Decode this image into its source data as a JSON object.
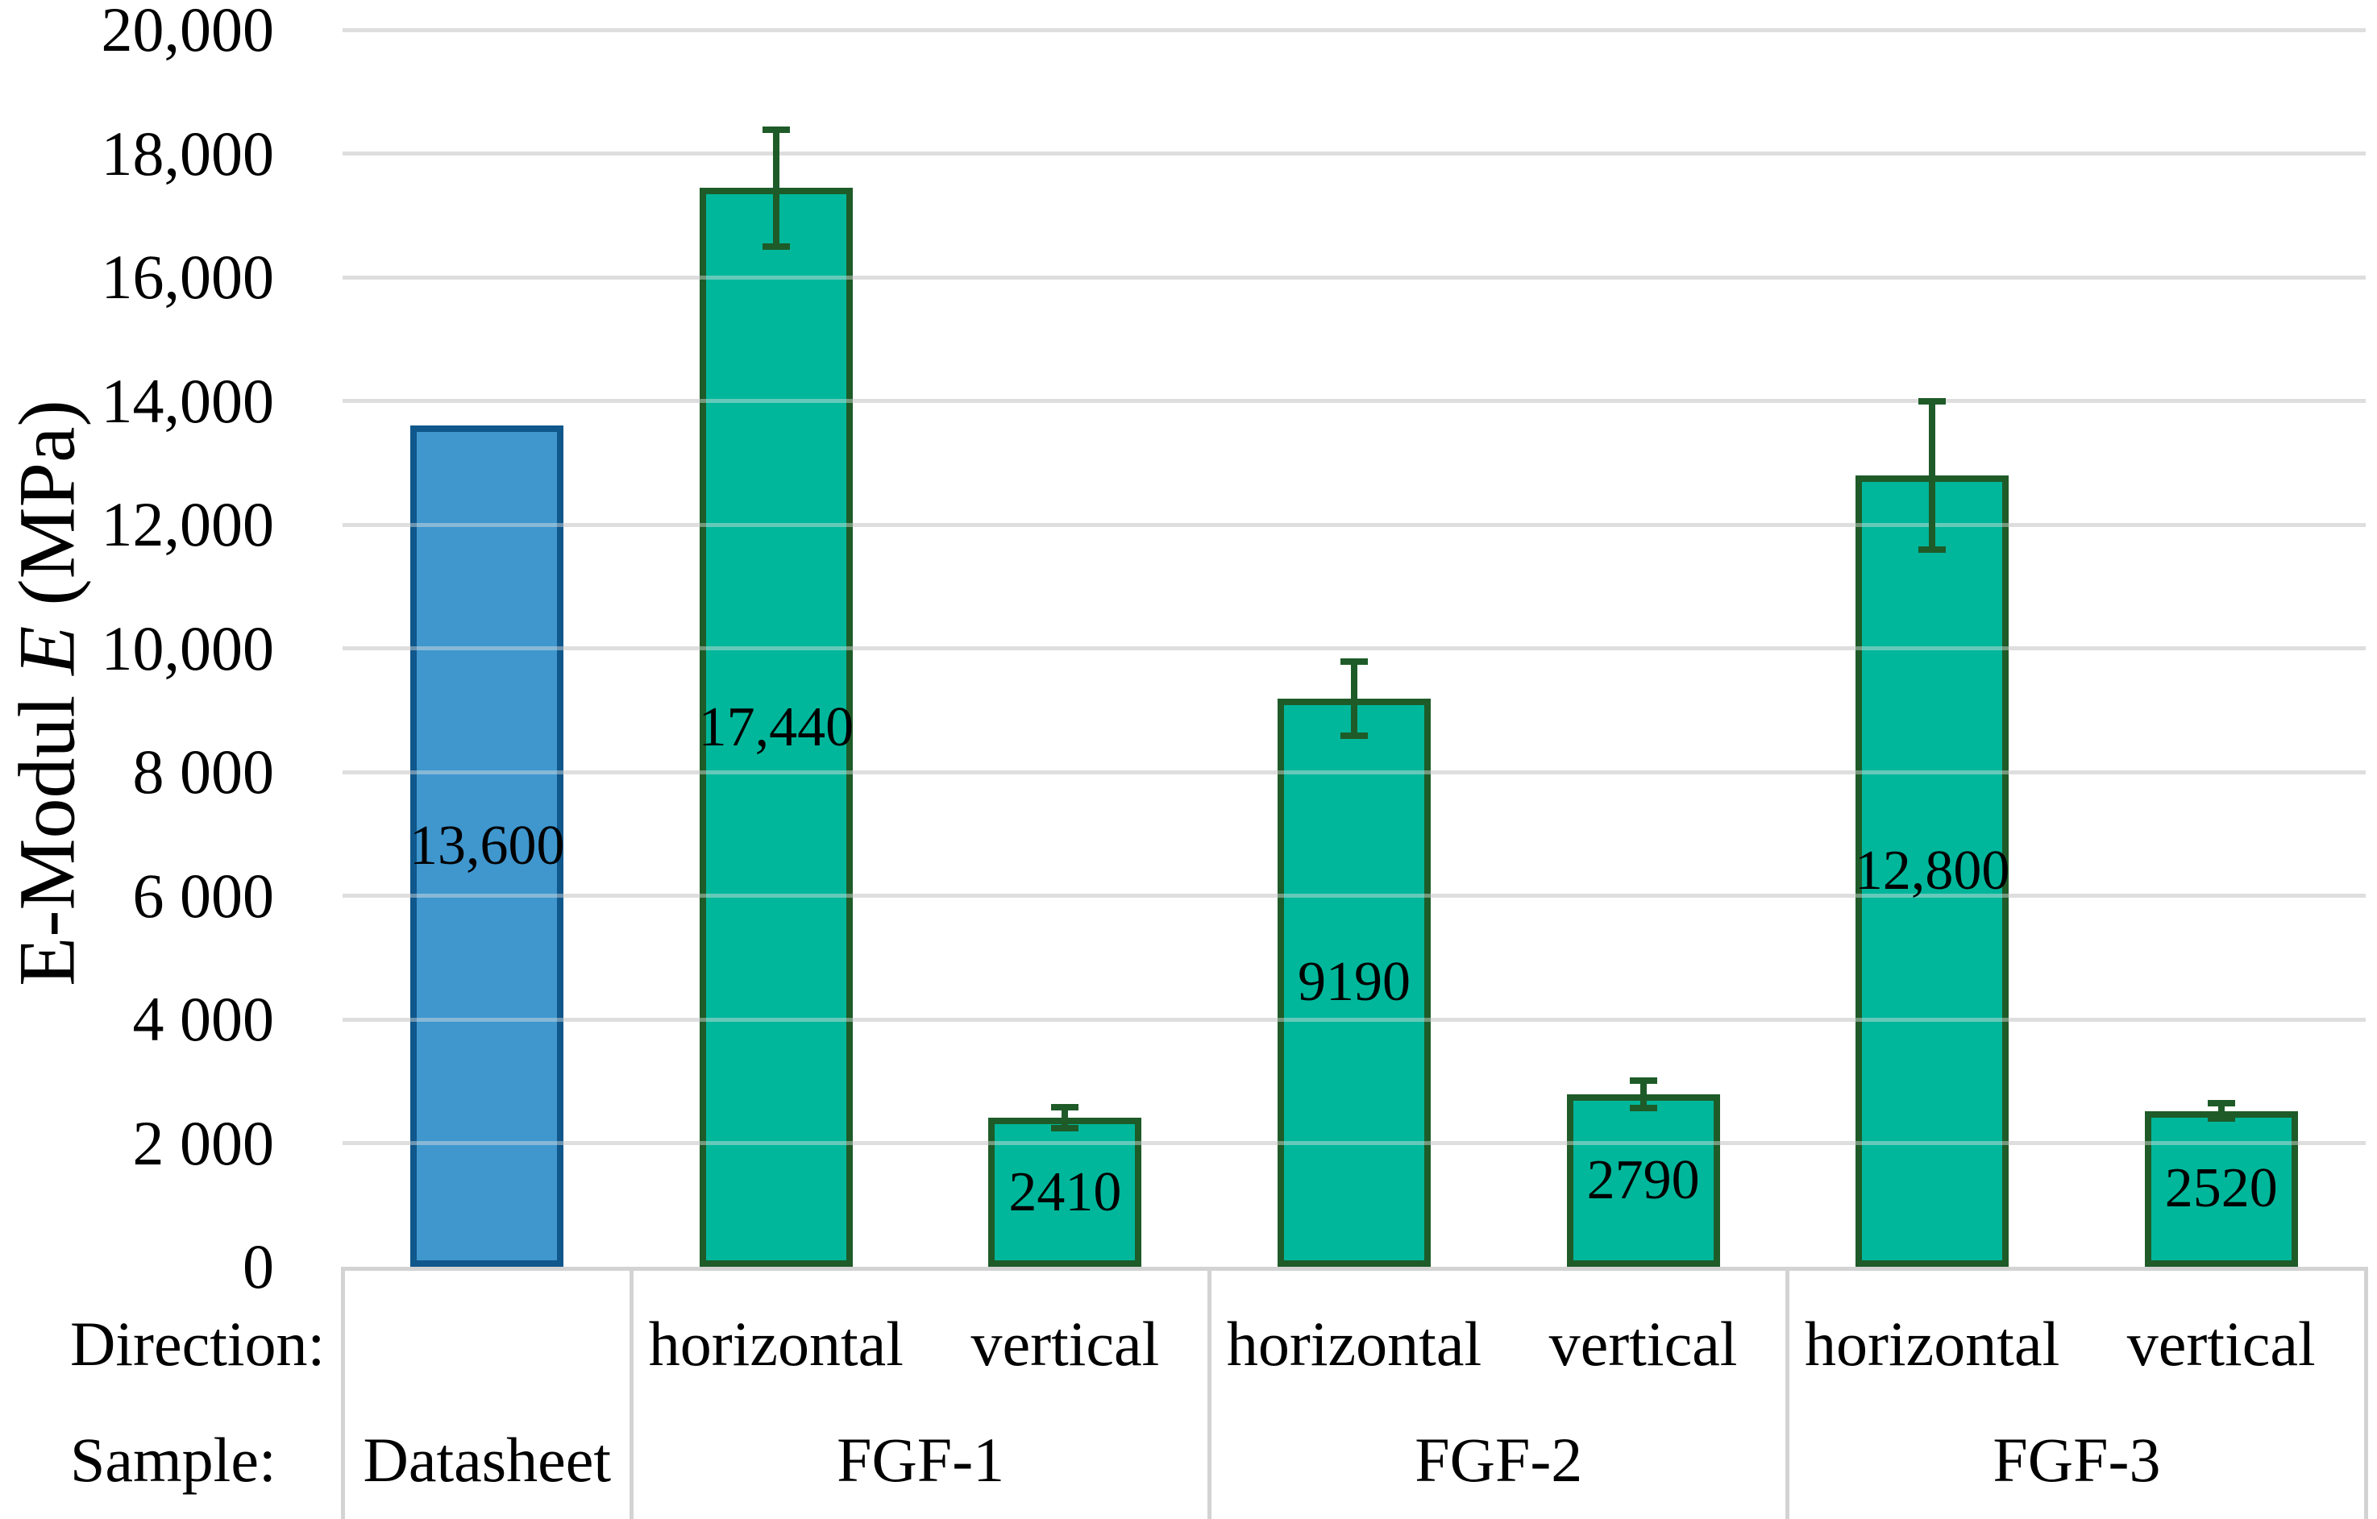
{
  "chart_data": {
    "type": "bar",
    "title": "",
    "ylabel_text": "E-Modul E (MPa)",
    "ylabel_parts": {
      "prefix": "E-Modul ",
      "italic": "E",
      "suffix": " (MPa)"
    },
    "ylim": [
      0,
      20000
    ],
    "ytick_step": 2000,
    "ytick_labels_top_to_bottom": [
      "20,000",
      "18,000",
      "16,000",
      "14,000",
      "12,000",
      "10,000",
      "8 000",
      "6 000",
      "4 000",
      "2 000",
      "0"
    ],
    "grid": true,
    "legend": false,
    "x_axis": {
      "direction_row_label": "Direction:",
      "sample_row_label": "Sample:"
    },
    "groups": [
      {
        "label": "Datasheet",
        "span": 1
      },
      {
        "label": "FGF-1",
        "span": 2
      },
      {
        "label": "FGF-2",
        "span": 2
      },
      {
        "label": "FGF-3",
        "span": 2
      }
    ],
    "bars": [
      {
        "sample": "Datasheet",
        "direction": "",
        "value": 13600,
        "label": "13,600",
        "series": "datasheet",
        "error_plus": 0,
        "error_minus": 0
      },
      {
        "sample": "FGF-1",
        "direction": "horizontal",
        "value": 17440,
        "label": "17,440",
        "series": "printed",
        "error_plus": 940,
        "error_minus": 940
      },
      {
        "sample": "FGF-1",
        "direction": "vertical",
        "value": 2410,
        "label": "2410",
        "series": "printed",
        "error_plus": 170,
        "error_minus": 170
      },
      {
        "sample": "FGF-2",
        "direction": "horizontal",
        "value": 9190,
        "label": "9190",
        "series": "printed",
        "error_plus": 600,
        "error_minus": 600
      },
      {
        "sample": "FGF-2",
        "direction": "vertical",
        "value": 2790,
        "label": "2790",
        "series": "printed",
        "error_plus": 220,
        "error_minus": 220
      },
      {
        "sample": "FGF-3",
        "direction": "horizontal",
        "value": 12800,
        "label": "12,800",
        "series": "printed",
        "error_plus": 1200,
        "error_minus": 1200
      },
      {
        "sample": "FGF-3",
        "direction": "vertical",
        "value": 2520,
        "label": "2520",
        "series": "printed",
        "error_plus": 120,
        "error_minus": 120
      }
    ],
    "colors": {
      "datasheet_fill": "#3F97CE",
      "datasheet_border": "#10578B",
      "printed_fill": "#00B79B",
      "printed_border": "#1E5B28",
      "error_bar": "#1E5B28",
      "gridline": "#DCDCDC",
      "table_line": "#D3D3D3",
      "text": "#000000"
    }
  }
}
